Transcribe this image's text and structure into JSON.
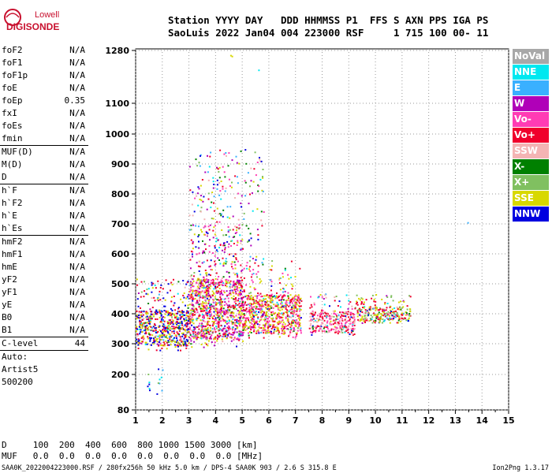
{
  "logo": {
    "line1": "Lowell",
    "line2": "DIGISONDE"
  },
  "header": {
    "line1": "Station YYYY DAY   DDD HHMMSS P1  FFS S AXN PPS IGA PS",
    "line2": "SaoLuis 2022 Jan04 004 223000 RSF     1 715 100 00- 11"
  },
  "params": {
    "g1": [
      {
        "name": "foF2",
        "value": "N/A"
      },
      {
        "name": "foF1",
        "value": "N/A"
      },
      {
        "name": "foF1p",
        "value": "N/A"
      },
      {
        "name": "foE",
        "value": "N/A"
      },
      {
        "name": "foEp",
        "value": "0.35"
      },
      {
        "name": "fxI",
        "value": "N/A"
      },
      {
        "name": "foEs",
        "value": "N/A"
      },
      {
        "name": "fmin",
        "value": "N/A"
      }
    ],
    "g2": [
      {
        "name": "MUF(D)",
        "value": "N/A"
      },
      {
        "name": "M(D)",
        "value": "N/A"
      },
      {
        "name": "D",
        "value": "N/A"
      }
    ],
    "g3": [
      {
        "name": "h`F",
        "value": "N/A"
      },
      {
        "name": "h`F2",
        "value": "N/A"
      },
      {
        "name": "h`E",
        "value": "N/A"
      },
      {
        "name": "h`Es",
        "value": "N/A"
      }
    ],
    "g4": [
      {
        "name": "hmF2",
        "value": "N/A"
      },
      {
        "name": "hmF1",
        "value": "N/A"
      },
      {
        "name": "hmE",
        "value": "N/A"
      },
      {
        "name": "yF2",
        "value": "N/A"
      },
      {
        "name": "yF1",
        "value": "N/A"
      },
      {
        "name": "yE",
        "value": "N/A"
      },
      {
        "name": "B0",
        "value": "N/A"
      },
      {
        "name": "B1",
        "value": "N/A"
      }
    ],
    "clevel": {
      "name": "C-level",
      "value": "44"
    },
    "auto": [
      "Auto:",
      "Artist5",
      "500200"
    ]
  },
  "legend": [
    {
      "label": "NoVal",
      "color": "#a8a8a8"
    },
    {
      "label": "NNE",
      "color": "#00e8f0"
    },
    {
      "label": "E",
      "color": "#3ab0ff"
    },
    {
      "label": "W",
      "color": "#b000b8"
    },
    {
      "label": "Vo-",
      "color": "#ff3cb4"
    },
    {
      "label": "Vo+",
      "color": "#f0002c"
    },
    {
      "label": "SSW",
      "color": "#f4b4b4"
    },
    {
      "label": "X-",
      "color": "#008000"
    },
    {
      "label": "X+",
      "color": "#80c060"
    },
    {
      "label": "SSE",
      "color": "#d8d800"
    },
    {
      "label": "NNW",
      "color": "#0000e0"
    }
  ],
  "bottom": {
    "line1": "D     100  200  400  600  800 1000 1500 3000 [km]",
    "line2": "MUF   0.0  0.0  0.0  0.0  0.0  0.0  0.0  0.0 [MHz]"
  },
  "footer": {
    "left": "SAA0K_2022004223000.RSF / 280fx256h 50 kHz 5.0 km / DPS-4 SAA0K 903 / 2.6 S 315.8 E",
    "right": "Ion2Png 1.3.17"
  },
  "chart_data": {
    "type": "scatter",
    "title": "",
    "xlabel": "",
    "ylabel": "",
    "x_ticks": [
      1,
      2,
      3,
      4,
      5,
      6,
      7,
      8,
      9,
      10,
      11,
      12,
      13,
      14,
      15
    ],
    "y_ticks": [
      80,
      200,
      300,
      400,
      500,
      600,
      700,
      800,
      900,
      1000,
      1100,
      1280
    ],
    "xlim": [
      1,
      15
    ],
    "ylim": [
      80,
      1280
    ],
    "y_scale": "nonlinear (ionogram virtual height)",
    "echo_clusters": [
      {
        "f_range": [
          1.0,
          3.0
        ],
        "h_range": [
          280,
          520
        ],
        "dominant": [
          "NNW",
          "Vo+",
          "SSE"
        ]
      },
      {
        "f_range": [
          3.0,
          5.0
        ],
        "h_range": [
          290,
          700
        ],
        "dominant": [
          "Vo-",
          "Vo+",
          "W",
          "SSE"
        ]
      },
      {
        "f_range": [
          5.0,
          7.2
        ],
        "h_range": [
          320,
          580
        ],
        "dominant": [
          "Vo+",
          "SSE",
          "Vo-"
        ]
      },
      {
        "f_range": [
          7.5,
          9.2
        ],
        "h_range": [
          330,
          470
        ],
        "dominant": [
          "Vo+",
          "Vo-",
          "SSW"
        ]
      },
      {
        "f_range": [
          9.2,
          11.3
        ],
        "h_range": [
          370,
          470
        ],
        "dominant": [
          "Vo+",
          "SSE",
          "X+"
        ]
      }
    ]
  }
}
